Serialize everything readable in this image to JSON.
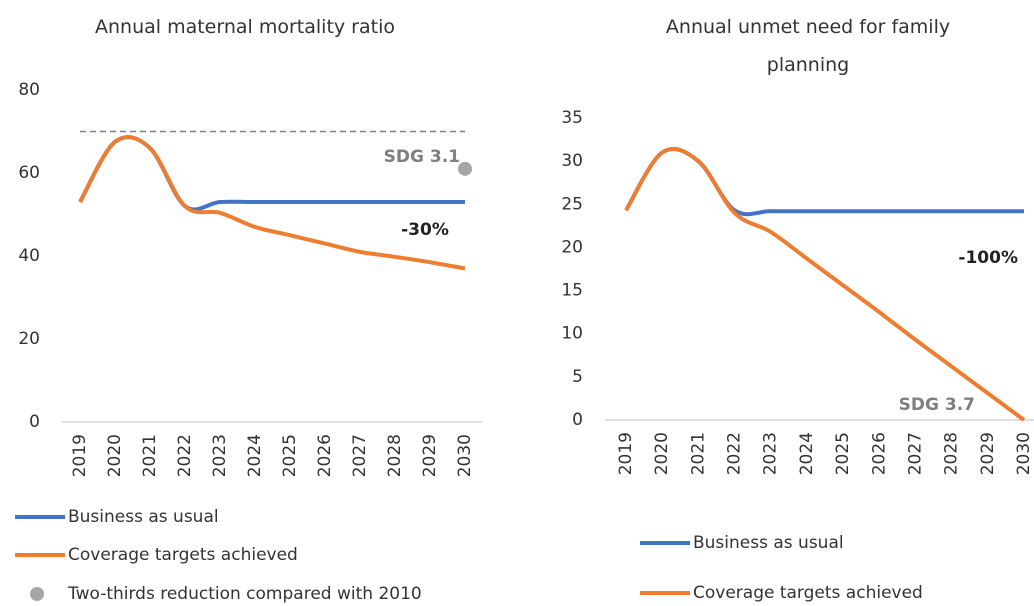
{
  "chart_data": [
    {
      "type": "line",
      "title": "Annual maternal mortality ratio",
      "categories": [
        "2019",
        "2020",
        "2021",
        "2022",
        "2023",
        "2024",
        "2025",
        "2026",
        "2027",
        "2028",
        "2029",
        "2030"
      ],
      "series": [
        {
          "name": "Business as usual",
          "color": "#4472c4",
          "values": [
            53,
            67.5,
            66,
            52,
            53,
            53,
            53,
            53,
            53,
            53,
            53,
            53
          ]
        },
        {
          "name": "Coverage targets achieved",
          "color": "#ed7d31",
          "values": [
            53,
            67.5,
            66,
            52,
            50.4,
            47,
            45,
            43,
            41,
            39.8,
            38.5,
            37
          ]
        },
        {
          "name": "Two-thirds reduction compared with 2010",
          "color": "#a6a6a6",
          "marker": "dot",
          "values": [
            null,
            null,
            null,
            null,
            null,
            null,
            null,
            null,
            null,
            null,
            null,
            61
          ]
        }
      ],
      "reference_line": 70,
      "annotations": [
        "SDG 3.1",
        "-30%"
      ],
      "ylim": [
        0,
        80
      ],
      "yticks": [
        0,
        20,
        40,
        60,
        80
      ]
    },
    {
      "type": "line",
      "title": "Annual unmet need for family planning",
      "categories": [
        "2019",
        "2020",
        "2021",
        "2022",
        "2023",
        "2024",
        "2025",
        "2026",
        "2027",
        "2028",
        "2029",
        "2030"
      ],
      "series": [
        {
          "name": "Business as usual",
          "color": "#4472c4",
          "values": [
            24.3,
            31,
            30,
            24.3,
            24.2,
            24.2,
            24.2,
            24.2,
            24.2,
            24.2,
            24.2,
            24.2
          ]
        },
        {
          "name": "Coverage targets achieved",
          "color": "#ed7d31",
          "values": [
            24.3,
            31,
            30,
            24,
            21.8,
            18.7,
            15.6,
            12.5,
            9.3,
            6.2,
            3.1,
            0
          ]
        }
      ],
      "annotations": [
        "-100%",
        "SDG 3.7"
      ],
      "ylim": [
        0,
        35
      ],
      "yticks": [
        0,
        5,
        10,
        15,
        20,
        25,
        30,
        35
      ]
    }
  ]
}
